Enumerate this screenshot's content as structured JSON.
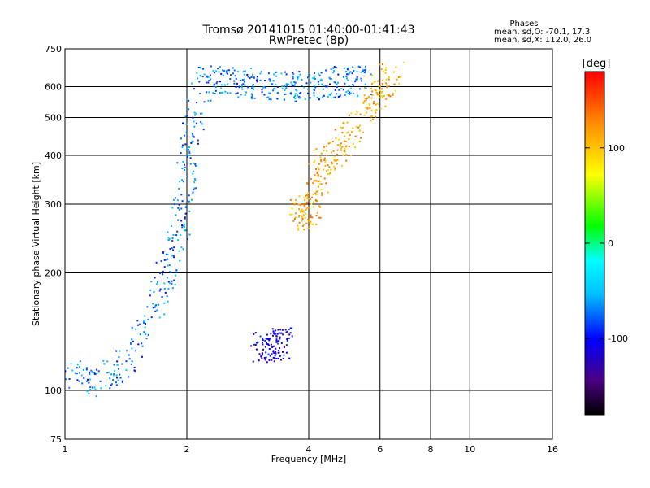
{
  "chart_data": {
    "type": "scatter",
    "title": "Tromsø 20141015 01:40:00-01:41:43",
    "subtitle": "RwPretec (8p)",
    "stats": {
      "heading": "Phases",
      "line_o": "mean, sd,O: -70.1, 17.3",
      "line_x": "mean, sd,X: 112.0, 26.0"
    },
    "xlabel": "Frequency [MHz]",
    "ylabel": "Stationary phase Virtual Height [km]",
    "x_scale": "log",
    "y_scale": "log",
    "xlim": [
      1,
      16
    ],
    "ylim": [
      75,
      750
    ],
    "x_ticks": [
      "1",
      "2",
      "4",
      "6",
      "8",
      "10",
      "16"
    ],
    "x_tick_values": [
      1,
      2,
      4,
      6,
      8,
      10,
      16
    ],
    "x_grid_values": [
      2,
      4,
      6,
      8,
      10
    ],
    "y_ticks": [
      "750",
      "600",
      "500",
      "400",
      "300",
      "200",
      "100",
      "75"
    ],
    "y_tick_values": [
      750,
      600,
      500,
      400,
      300,
      200,
      100,
      75
    ],
    "y_grid_values": [
      600,
      500,
      400,
      300,
      200,
      100
    ],
    "grid": true,
    "colorbar": {
      "label": "[deg]",
      "range": [
        -180,
        180
      ],
      "ticks": [
        "100",
        "0",
        "-100"
      ],
      "tick_values": [
        100,
        0,
        -100
      ],
      "colormap": [
        "#000000",
        "#4b0082",
        "#0000ff",
        "#00bfff",
        "#00ffff",
        "#00ff00",
        "#ffff00",
        "#ff8c00",
        "#ff0000"
      ]
    },
    "series": [
      {
        "key": "o_mode_trace",
        "phase_deg": -70,
        "x": [
          1.0,
          1.2,
          1.4,
          1.6,
          1.8,
          1.9,
          2.0,
          2.05,
          2.2,
          2.5,
          2.8,
          3.2,
          3.6,
          4.0,
          4.5,
          5.0,
          5.5
        ],
        "y": [
          110,
          105,
          115,
          150,
          200,
          250,
          330,
          450,
          620,
          620,
          610,
          600,
          600,
          600,
          610,
          620,
          620
        ]
      },
      {
        "key": "x_mode_trace",
        "phase_deg": 112,
        "x": [
          3.7,
          3.9,
          4.1,
          4.3,
          4.6,
          5.0,
          5.5,
          6.0,
          6.6
        ],
        "y": [
          280,
          285,
          295,
          380,
          400,
          450,
          520,
          600,
          650
        ]
      },
      {
        "key": "sporadic_e",
        "phase_deg": -110,
        "x": [
          3.0,
          3.2,
          3.4,
          3.5
        ],
        "y": [
          128,
          130,
          132,
          132
        ]
      }
    ]
  }
}
